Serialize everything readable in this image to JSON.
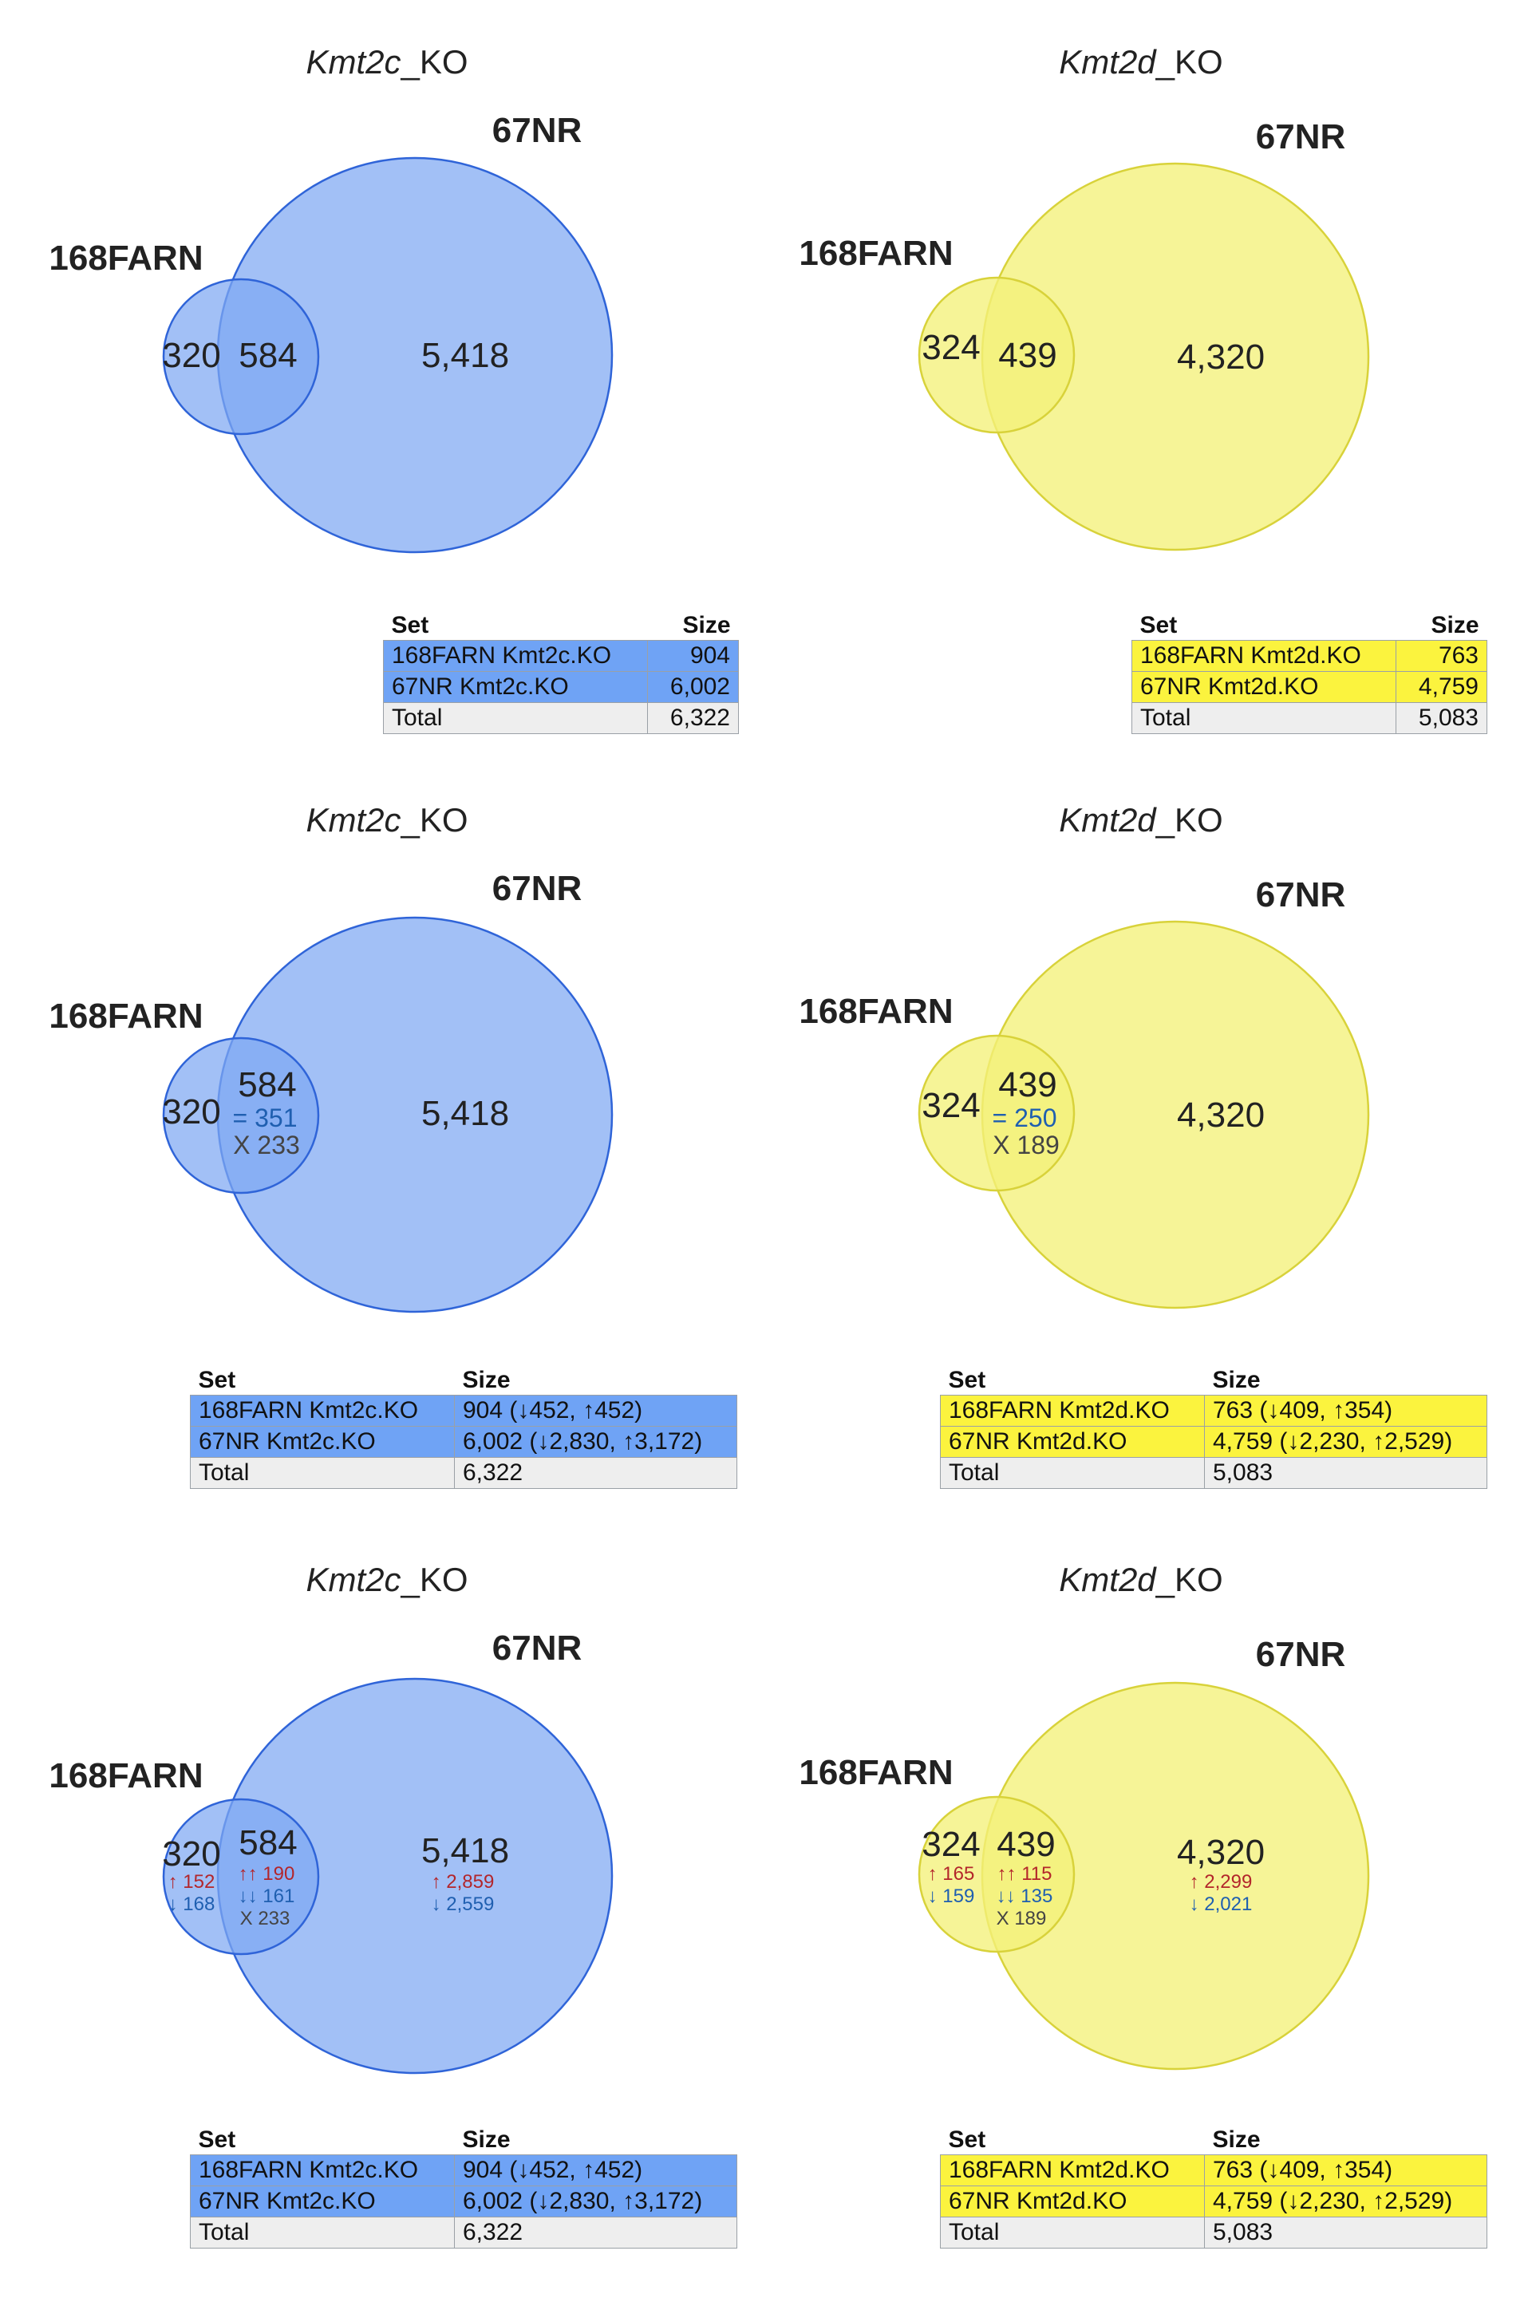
{
  "colors": {
    "kmt2c_fill": "#7ea7f3",
    "kmt2c_overlap": "#5b87ee",
    "kmt2c_stroke": "#2f64d8",
    "kmt2c_table": "#6fa3f5",
    "kmt2d_fill": "#f4f17a",
    "kmt2d_overlap": "#f0ec3c",
    "kmt2d_stroke": "#d8d23a",
    "kmt2d_table": "#fbf33e",
    "up": "#b3262b",
    "down": "#1f5fb0",
    "equal": "#1f5fb0",
    "cross": "#444444"
  },
  "panels": [
    {
      "title_gene": "Kmt2c",
      "title_suffix": "_KO",
      "label_a": "168FARN",
      "label_b": "67NR",
      "only_a": "320",
      "both": "584",
      "only_b": "5,418",
      "same_dir": "",
      "opp_dir": "",
      "only_a_up": "",
      "only_a_down": "",
      "both_up": "",
      "both_down": "",
      "only_b_up": "",
      "only_b_down": "",
      "table": {
        "headers": [
          "Set",
          "Size"
        ],
        "rows": [
          [
            "168FARN Kmt2c.KO",
            "904"
          ],
          [
            "67NR Kmt2c.KO",
            "6,002"
          ]
        ],
        "total": [
          "Total",
          "6,322"
        ]
      }
    },
    {
      "title_gene": "Kmt2d",
      "title_suffix": "_KO",
      "label_a": "168FARN",
      "label_b": "67NR",
      "only_a": "324",
      "both": "439",
      "only_b": "4,320",
      "same_dir": "",
      "opp_dir": "",
      "only_a_up": "",
      "only_a_down": "",
      "both_up": "",
      "both_down": "",
      "only_b_up": "",
      "only_b_down": "",
      "table": {
        "headers": [
          "Set",
          "Size"
        ],
        "rows": [
          [
            "168FARN Kmt2d.KO",
            "763"
          ],
          [
            "67NR Kmt2d.KO",
            "4,759"
          ]
        ],
        "total": [
          "Total",
          "5,083"
        ]
      }
    },
    {
      "title_gene": "Kmt2c",
      "title_suffix": "_KO",
      "label_a": "168FARN",
      "label_b": "67NR",
      "only_a": "320",
      "both": "584",
      "only_b": "5,418",
      "same_dir": "= 351",
      "opp_dir": "X 233",
      "only_a_up": "",
      "only_a_down": "",
      "both_up": "",
      "both_down": "",
      "only_b_up": "",
      "only_b_down": "",
      "table": {
        "headers": [
          "Set",
          "Size"
        ],
        "rows": [
          [
            "168FARN Kmt2c.KO",
            "904 (↓452, ↑452)"
          ],
          [
            "67NR Kmt2c.KO",
            "6,002 (↓2,830, ↑3,172)"
          ]
        ],
        "total": [
          "Total",
          "6,322"
        ]
      }
    },
    {
      "title_gene": "Kmt2d",
      "title_suffix": "_KO",
      "label_a": "168FARN",
      "label_b": "67NR",
      "only_a": "324",
      "both": "439",
      "only_b": "4,320",
      "same_dir": "= 250",
      "opp_dir": "X 189",
      "only_a_up": "",
      "only_a_down": "",
      "both_up": "",
      "both_down": "",
      "only_b_up": "",
      "only_b_down": "",
      "table": {
        "headers": [
          "Set",
          "Size"
        ],
        "rows": [
          [
            "168FARN Kmt2d.KO",
            "763 (↓409, ↑354)"
          ],
          [
            "67NR Kmt2d.KO",
            "4,759 (↓2,230, ↑2,529)"
          ]
        ],
        "total": [
          "Total",
          "5,083"
        ]
      }
    },
    {
      "title_gene": "Kmt2c",
      "title_suffix": "_KO",
      "label_a": "168FARN",
      "label_b": "67NR",
      "only_a": "320",
      "both": "584",
      "only_b": "5,418",
      "same_dir": "",
      "opp_dir": "X 233",
      "only_a_up": "↑ 152",
      "only_a_down": "↓ 168",
      "both_up": "↑↑ 190",
      "both_down": "↓↓ 161",
      "only_b_up": "↑ 2,859",
      "only_b_down": "↓ 2,559",
      "table": {
        "headers": [
          "Set",
          "Size"
        ],
        "rows": [
          [
            "168FARN Kmt2c.KO",
            "904 (↓452, ↑452)"
          ],
          [
            "67NR Kmt2c.KO",
            "6,002 (↓2,830, ↑3,172)"
          ]
        ],
        "total": [
          "Total",
          "6,322"
        ]
      }
    },
    {
      "title_gene": "Kmt2d",
      "title_suffix": "_KO",
      "label_a": "168FARN",
      "label_b": "67NR",
      "only_a": "324",
      "both": "439",
      "only_b": "4,320",
      "same_dir": "",
      "opp_dir": "X 189",
      "only_a_up": "↑ 165",
      "only_a_down": "↓ 159",
      "both_up": "↑↑ 115",
      "both_down": "↓↓ 135",
      "only_b_up": "↑ 2,299",
      "only_b_down": "↓ 2,021",
      "table": {
        "headers": [
          "Set",
          "Size"
        ],
        "rows": [
          [
            "168FARN Kmt2d.KO",
            "763 (↓409, ↑354)"
          ],
          [
            "67NR Kmt2d.KO",
            "4,759 (↓2,230, ↑2,529)"
          ]
        ],
        "total": [
          "Total",
          "5,083"
        ]
      }
    }
  ]
}
